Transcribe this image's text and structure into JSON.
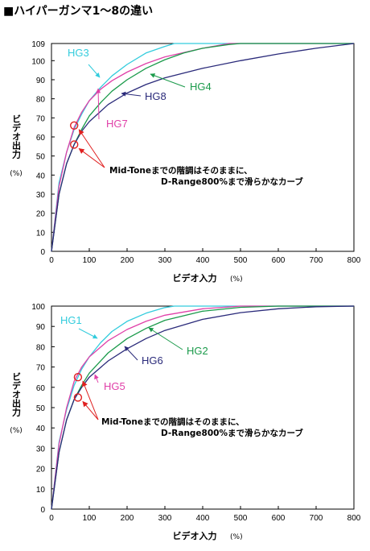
{
  "page": {
    "title": "■ハイパーガンマ1～8の違い"
  },
  "chart_data": [
    {
      "type": "line",
      "xlabel": "ビデオ入力",
      "xunit": "(%)",
      "ylabel": "ビデオ出力",
      "yunit": "(%)",
      "xlim": [
        0,
        800
      ],
      "ylim": [
        0,
        109
      ],
      "xticks": [
        0,
        100,
        200,
        300,
        400,
        500,
        600,
        700,
        800
      ],
      "yticks": [
        0,
        10,
        20,
        30,
        40,
        50,
        60,
        70,
        80,
        90,
        100,
        109
      ],
      "grid": false,
      "series": [
        {
          "name": "HG3",
          "color": "#33ccdd",
          "x": [
            0,
            20,
            40,
            60,
            80,
            100,
            130,
            160,
            200,
            250,
            300,
            325,
            800
          ],
          "y": [
            0,
            36,
            52,
            64,
            72,
            79,
            86,
            92,
            98,
            104,
            107.5,
            109,
            109
          ]
        },
        {
          "name": "HG7",
          "color": "#e040a8",
          "x": [
            0,
            20,
            40,
            60,
            80,
            100,
            130,
            160,
            200,
            250,
            300,
            400,
            470,
            800
          ],
          "y": [
            0,
            34,
            52,
            65,
            73,
            79,
            85,
            89.5,
            94,
            98.5,
            102,
            106.5,
            109,
            109
          ]
        },
        {
          "name": "HG4",
          "color": "#1a9a4a",
          "x": [
            0,
            20,
            40,
            60,
            80,
            100,
            130,
            160,
            200,
            250,
            300,
            350,
            400,
            470,
            500,
            800
          ],
          "y": [
            0,
            30,
            46,
            56,
            64,
            71,
            78,
            84,
            90,
            96,
            100.5,
            104,
            106.5,
            108.5,
            109,
            109
          ]
        },
        {
          "name": "HG8",
          "color": "#2a2a7a",
          "x": [
            0,
            20,
            40,
            60,
            80,
            100,
            150,
            200,
            250,
            300,
            400,
            500,
            600,
            700,
            800
          ],
          "y": [
            0,
            30,
            46,
            56,
            63,
            68,
            77,
            83,
            87.5,
            91,
            96,
            100,
            103.5,
            106.5,
            109
          ]
        }
      ],
      "labels": [
        {
          "text": "HG3",
          "color": "#33ccdd",
          "x": 55,
          "y": 102
        },
        {
          "text": "HG7",
          "color": "#e040a8",
          "x": 148,
          "y": 62
        },
        {
          "text": "HG4",
          "color": "#1a9a4a",
          "x": 385,
          "y": 85
        },
        {
          "text": "HG8",
          "color": "#2a2a7a",
          "x": 250,
          "y": 80
        }
      ],
      "markers": [
        {
          "x": 60,
          "y": 66
        },
        {
          "x": 60,
          "y": 56
        }
      ],
      "annotation": [
        "Mid-Toneまでの階調はそのままに、",
        "D-Range800%まで滑らかなカーブ"
      ]
    },
    {
      "type": "line",
      "xlabel": "ビデオ入力",
      "xunit": "(%)",
      "ylabel": "ビデオ出力",
      "yunit": "(%)",
      "xlim": [
        0,
        800
      ],
      "ylim": [
        0,
        100
      ],
      "xticks": [
        0,
        100,
        200,
        300,
        400,
        500,
        600,
        700,
        800
      ],
      "yticks": [
        0,
        10,
        20,
        30,
        40,
        50,
        60,
        70,
        80,
        90,
        100
      ],
      "grid": false,
      "series": [
        {
          "name": "HG1",
          "color": "#33ccdd",
          "x": [
            0,
            20,
            40,
            60,
            80,
            100,
            130,
            160,
            200,
            250,
            300,
            325,
            800
          ],
          "y": [
            0,
            33,
            49,
            61,
            69,
            75,
            82,
            87.5,
            92.5,
            96.5,
            99.3,
            100,
            100
          ]
        },
        {
          "name": "HG5",
          "color": "#e040a8",
          "x": [
            0,
            20,
            40,
            60,
            80,
            100,
            150,
            200,
            250,
            300,
            400,
            500,
            800
          ],
          "y": [
            0,
            32,
            50,
            63,
            70,
            75,
            83,
            88.5,
            92.5,
            95.5,
            98.7,
            100,
            100
          ]
        },
        {
          "name": "HG2",
          "color": "#1a9a4a",
          "x": [
            0,
            20,
            40,
            60,
            80,
            100,
            150,
            200,
            250,
            300,
            400,
            500,
            600,
            800
          ],
          "y": [
            0,
            28,
            44,
            54,
            61,
            67,
            77,
            84,
            89,
            93,
            97.5,
            99.4,
            100,
            100
          ]
        },
        {
          "name": "HG6",
          "color": "#2a2a7a",
          "x": [
            0,
            20,
            40,
            60,
            80,
            100,
            150,
            200,
            250,
            300,
            400,
            500,
            600,
            700,
            800
          ],
          "y": [
            0,
            28,
            44,
            54,
            60,
            65,
            73,
            79,
            84,
            88,
            93.5,
            96.8,
            98.7,
            99.7,
            100
          ]
        }
      ],
      "labels": [
        {
          "text": "HG1",
          "color": "#33ccdd",
          "x": 30,
          "y": 92
        },
        {
          "text": "HG5",
          "color": "#e040a8",
          "x": 135,
          "y": 60
        },
        {
          "text": "HG2",
          "color": "#1a9a4a",
          "x": 385,
          "y": 77
        },
        {
          "text": "HG6",
          "color": "#2a2a7a",
          "x": 250,
          "y": 71
        }
      ],
      "markers": [
        {
          "x": 70,
          "y": 65
        },
        {
          "x": 70,
          "y": 55
        }
      ],
      "annotation": [
        "Mid-Toneまでの階調はそのままに、",
        "D-Range800%まで滑らかなカーブ"
      ]
    }
  ]
}
